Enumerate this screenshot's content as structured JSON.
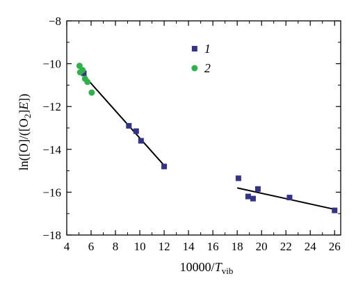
{
  "chart_data": {
    "type": "scatter",
    "xlabel_main": "10000/",
    "xlabel_var": "T",
    "xlabel_sub": "vib",
    "ylabel_pre": "ln([O]/([O",
    "ylabel_sub": "2",
    "ylabel_mid": "]",
    "ylabel_var": "E",
    "ylabel_post": "])",
    "xlim": [
      4,
      26.5
    ],
    "ylim": [
      -18,
      -8
    ],
    "xticks": [
      4,
      6,
      8,
      10,
      12,
      14,
      16,
      18,
      20,
      22,
      24,
      26
    ],
    "xtick_labels": [
      "4",
      "6",
      "8",
      "10",
      "12",
      "14",
      "16",
      "18",
      "20",
      "22",
      "24",
      "26"
    ],
    "yticks": [
      -18,
      -16,
      -14,
      -12,
      -10,
      -8
    ],
    "ytick_labels": [
      "−18",
      "−16",
      "−14",
      "−12",
      "−10",
      "−8"
    ],
    "grid": false,
    "legend_position": "top-center",
    "series": [
      {
        "name": "1",
        "marker": "square",
        "color": "#33338a",
        "points": [
          [
            5.4,
            -10.45
          ],
          [
            9.1,
            -12.9
          ],
          [
            9.7,
            -13.15
          ],
          [
            10.1,
            -13.6
          ],
          [
            12.0,
            -14.8
          ],
          [
            18.1,
            -15.35
          ],
          [
            18.9,
            -16.2
          ],
          [
            19.3,
            -16.3
          ],
          [
            19.7,
            -15.85
          ],
          [
            22.3,
            -16.25
          ],
          [
            26.0,
            -16.85
          ]
        ]
      },
      {
        "name": "2",
        "marker": "circle",
        "color": "#2eb34a",
        "points": [
          [
            5.05,
            -10.1
          ],
          [
            5.1,
            -10.4
          ],
          [
            5.3,
            -10.3
          ],
          [
            5.5,
            -10.7
          ],
          [
            5.7,
            -10.85
          ],
          [
            6.05,
            -11.35
          ]
        ]
      }
    ],
    "fit_lines": [
      {
        "x": [
          5.1,
          12.0
        ],
        "y": [
          -10.35,
          -14.75
        ],
        "color": "#000000"
      },
      {
        "x": [
          18.0,
          26.0
        ],
        "y": [
          -15.8,
          -16.8
        ],
        "color": "#000000"
      }
    ]
  }
}
